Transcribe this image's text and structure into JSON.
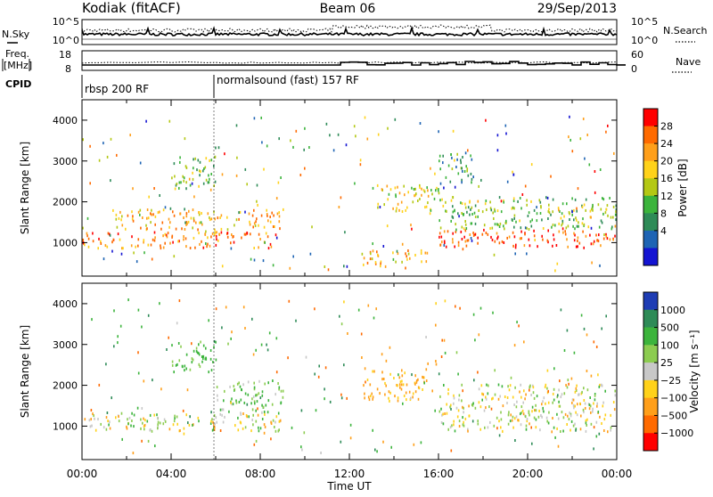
{
  "header": {
    "station": "Kodiak (fitACF)",
    "beam": "Beam 06",
    "date": "29/Sep/2013"
  },
  "noise_panel": {
    "left_label": "N.Sky",
    "right_label": "N.Search",
    "left_ticks": [
      "10^5",
      "10^0"
    ],
    "right_ticks": [
      "10^5",
      "10^0"
    ]
  },
  "freq_panel": {
    "left_label_line1": "Freq.",
    "left_label_line2": "[MHz]",
    "right_label": "Nave",
    "left_ticks": [
      "18",
      "8"
    ],
    "right_ticks": [
      "60",
      "0"
    ]
  },
  "cpid_panel": {
    "label": "CPID",
    "modes": [
      {
        "name": "rbsp 200 RF",
        "start_hour": 0
      },
      {
        "name": "normalsound (fast) 157 RF",
        "start_hour": 6
      }
    ]
  },
  "colorbars": {
    "power": {
      "title": "Power [dB]",
      "ticks": [
        "28",
        "24",
        "20",
        "16",
        "12",
        "8",
        "4"
      ],
      "colors": [
        "#ff0000",
        "#ff6a00",
        "#ff9f1a",
        "#ffd21a",
        "#b4c814",
        "#3cb43c",
        "#2e8b57",
        "#1e64b4",
        "#1414d2"
      ]
    },
    "velocity": {
      "title": "Velocity [m s⁻¹]",
      "ticks": [
        "1000",
        "500",
        "100",
        "25",
        "−25",
        "−100",
        "−500",
        "−1000"
      ],
      "colors": [
        "#1e3cb4",
        "#2e8b57",
        "#3cb43c",
        "#8ccc50",
        "#c8c8c8",
        "#ffd21a",
        "#ff9f1a",
        "#ff6a00",
        "#ff0000"
      ]
    }
  },
  "chart_data": [
    {
      "type": "heatmap",
      "name": "power",
      "ylabel": "Slant Range [km]",
      "x_ticks": [
        "00:00",
        "04:00",
        "08:00",
        "12:00",
        "16:00",
        "20:00",
        "00:00"
      ],
      "x_range_hours": [
        0,
        24
      ],
      "y_ticks": [
        "1000",
        "2000",
        "3000",
        "4000"
      ],
      "y_range_km": [
        180,
        4500
      ],
      "echo_regions": [
        {
          "t0": 0,
          "t1": 9,
          "r0": 850,
          "r1": 1250,
          "power_db": 24
        },
        {
          "t0": 1.5,
          "t1": 9,
          "r0": 1300,
          "r1": 1800,
          "power_db": 20
        },
        {
          "t0": 4,
          "t1": 6,
          "r0": 2300,
          "r1": 3100,
          "power_db": 12
        },
        {
          "t0": 12.5,
          "t1": 15.5,
          "r0": 400,
          "r1": 800,
          "power_db": 20
        },
        {
          "t0": 13,
          "t1": 16,
          "r0": 1700,
          "r1": 2400,
          "power_db": 16
        },
        {
          "t0": 16,
          "t1": 24,
          "r0": 850,
          "r1": 1300,
          "power_db": 26
        },
        {
          "t0": 16,
          "t1": 24,
          "r0": 1300,
          "r1": 2100,
          "power_db": 12
        },
        {
          "t0": 16,
          "t1": 17.5,
          "r0": 2400,
          "r1": 3200,
          "power_db": 8
        }
      ]
    },
    {
      "type": "heatmap",
      "name": "velocity",
      "ylabel": "Slant Range [km]",
      "xlabel": "Time UT",
      "x_ticks": [
        "00:00",
        "04:00",
        "08:00",
        "12:00",
        "16:00",
        "20:00",
        "00:00"
      ],
      "x_range_hours": [
        0,
        24
      ],
      "y_ticks": [
        "1000",
        "2000",
        "3000",
        "4000"
      ],
      "y_range_km": [
        180,
        4500
      ],
      "echo_regions": [
        {
          "t0": 0,
          "t1": 9,
          "r0": 850,
          "r1": 1300,
          "velocity": 0
        },
        {
          "t0": 4,
          "t1": 6,
          "r0": 2300,
          "r1": 3100,
          "velocity": 150
        },
        {
          "t0": 6,
          "t1": 9,
          "r0": 1300,
          "r1": 2100,
          "velocity": 120
        },
        {
          "t0": 12.5,
          "t1": 15.5,
          "r0": 1600,
          "r1": 2400,
          "velocity": -150
        },
        {
          "t0": 16,
          "t1": 24,
          "r0": 850,
          "r1": 2000,
          "velocity": 0
        }
      ]
    }
  ]
}
